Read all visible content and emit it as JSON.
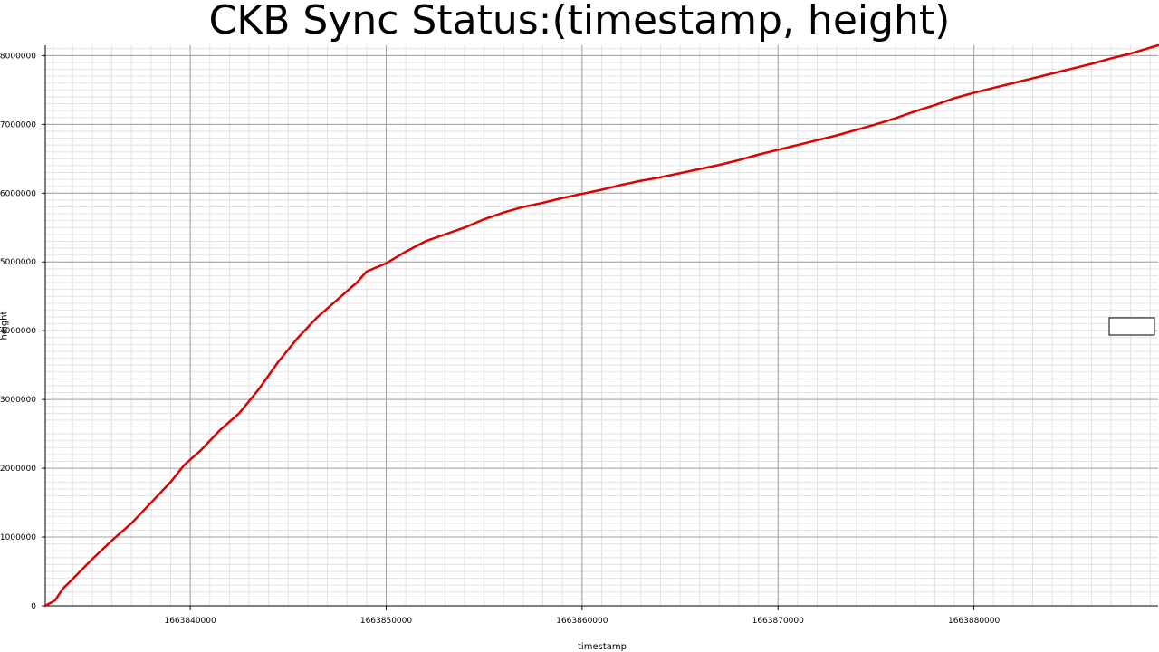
{
  "chart_data": {
    "type": "line",
    "title": "CKB Sync Status:(timestamp, height)",
    "xlabel": "timestamp",
    "ylabel": "height",
    "xlim": [
      1663832600,
      1663889400
    ],
    "ylim": [
      0,
      8150000
    ],
    "x_ticks": [
      1663840000,
      1663850000,
      1663860000,
      1663870000,
      1663880000
    ],
    "x_tick_labels": [
      "1663840000",
      "1663850000",
      "1663860000",
      "1663870000",
      "1663880000"
    ],
    "y_ticks": [
      0,
      1000000,
      2000000,
      3000000,
      4000000,
      5000000,
      6000000,
      7000000,
      8000000
    ],
    "y_tick_labels": [
      "0",
      "1000000",
      "2000000",
      "3000000",
      "4000000",
      "5000000",
      "6000000",
      "7000000",
      "8000000"
    ],
    "grid": true,
    "legend": "right",
    "line_color": "#e00000",
    "series": [
      {
        "x": [
          1663832600,
          1663833100,
          1663833500,
          1663834000,
          1663835000,
          1663836000,
          1663837000,
          1663838000,
          1663839000,
          1663839700,
          1663840500,
          1663841500,
          1663842500,
          1663843500,
          1663844500,
          1663845500,
          1663846500,
          1663847500,
          1663848500,
          1663849000,
          1663850000,
          1663851000,
          1663852000,
          1663853000,
          1663854000,
          1663855000,
          1663856000,
          1663857000,
          1663858000,
          1663859000,
          1663860000,
          1663861000,
          1663862000,
          1663863000,
          1663864000,
          1663865000,
          1663866000,
          1663867000,
          1663868000,
          1663869000,
          1663870000,
          1663871000,
          1663872000,
          1663873000,
          1663874000,
          1663875000,
          1663876000,
          1663877000,
          1663878000,
          1663879000,
          1663880000,
          1663881000,
          1663882000,
          1663883000,
          1663884000,
          1663885000,
          1663886000,
          1663887000,
          1663888000,
          1663889400
        ],
        "y": [
          0,
          80000,
          250000,
          390000,
          680000,
          950000,
          1200000,
          1500000,
          1800000,
          2050000,
          2250000,
          2550000,
          2800000,
          3150000,
          3550000,
          3900000,
          4200000,
          4450000,
          4700000,
          4860000,
          4980000,
          5150000,
          5300000,
          5400000,
          5500000,
          5620000,
          5720000,
          5800000,
          5860000,
          5930000,
          5990000,
          6050000,
          6120000,
          6180000,
          6230000,
          6290000,
          6350000,
          6410000,
          6480000,
          6560000,
          6630000,
          6700000,
          6770000,
          6840000,
          6920000,
          7000000,
          7090000,
          7190000,
          7280000,
          7380000,
          7460000,
          7530000,
          7600000,
          7670000,
          7740000,
          7810000,
          7880000,
          7960000,
          8030000,
          8150000
        ]
      }
    ]
  }
}
